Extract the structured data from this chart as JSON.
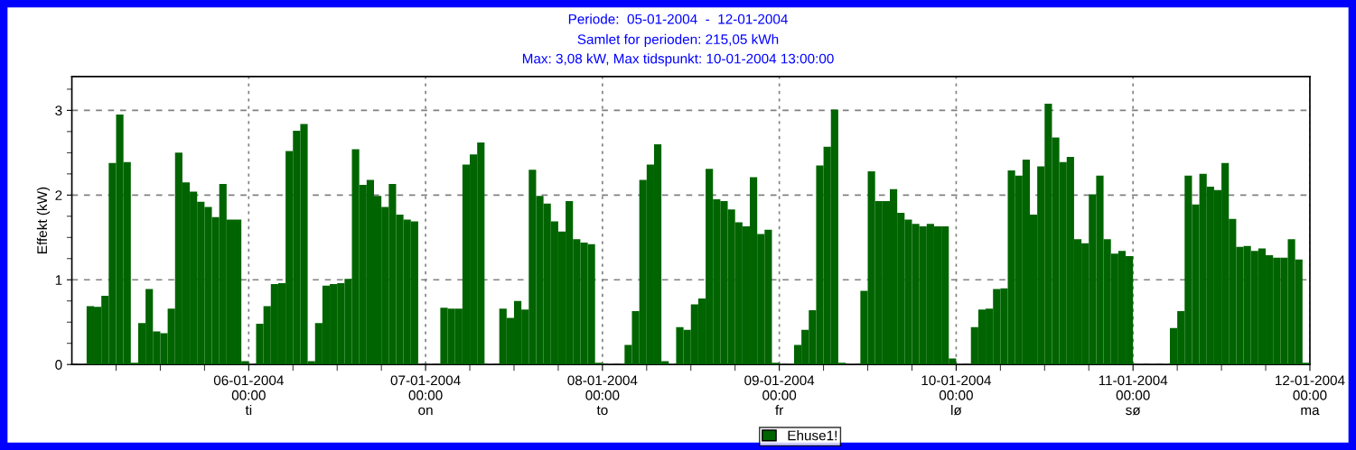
{
  "chart_data": {
    "type": "bar",
    "title": "Periode:  05-01-2004  -  12-01-2004",
    "subtitle": "Samlet for perioden: 215,05 kWh\nMax: 3,08 kW, Max tidspunkt: 10-01-2004 13:00:00",
    "ylabel": "Effekt (kW)",
    "x": [
      "2004-01-05T01:00",
      "2004-01-05T02:00",
      "2004-01-05T03:00",
      "2004-01-05T04:00",
      "2004-01-05T05:00",
      "2004-01-05T06:00",
      "2004-01-05T07:00",
      "2004-01-05T08:00",
      "2004-01-05T09:00",
      "2004-01-05T10:00",
      "2004-01-05T11:00",
      "2004-01-05T12:00",
      "2004-01-05T13:00",
      "2004-01-05T14:00",
      "2004-01-05T15:00",
      "2004-01-05T16:00",
      "2004-01-05T17:00",
      "2004-01-05T18:00",
      "2004-01-05T19:00",
      "2004-01-05T20:00",
      "2004-01-05T21:00",
      "2004-01-05T22:00",
      "2004-01-05T23:00",
      "2004-01-06T00:00",
      "2004-01-06T01:00",
      "2004-01-06T02:00",
      "2004-01-06T03:00",
      "2004-01-06T04:00",
      "2004-01-06T05:00",
      "2004-01-06T06:00",
      "2004-01-06T07:00",
      "2004-01-06T08:00",
      "2004-01-06T09:00",
      "2004-01-06T10:00",
      "2004-01-06T11:00",
      "2004-01-06T12:00",
      "2004-01-06T13:00",
      "2004-01-06T14:00",
      "2004-01-06T15:00",
      "2004-01-06T16:00",
      "2004-01-06T17:00",
      "2004-01-06T18:00",
      "2004-01-06T19:00",
      "2004-01-06T20:00",
      "2004-01-06T21:00",
      "2004-01-06T22:00",
      "2004-01-06T23:00",
      "2004-01-07T00:00",
      "2004-01-07T01:00",
      "2004-01-07T02:00",
      "2004-01-07T03:00",
      "2004-01-07T04:00",
      "2004-01-07T05:00",
      "2004-01-07T06:00",
      "2004-01-07T07:00",
      "2004-01-07T08:00",
      "2004-01-07T09:00",
      "2004-01-07T10:00",
      "2004-01-07T11:00",
      "2004-01-07T12:00",
      "2004-01-07T13:00",
      "2004-01-07T14:00",
      "2004-01-07T15:00",
      "2004-01-07T16:00",
      "2004-01-07T17:00",
      "2004-01-07T18:00",
      "2004-01-07T19:00",
      "2004-01-07T20:00",
      "2004-01-07T21:00",
      "2004-01-07T22:00",
      "2004-01-07T23:00",
      "2004-01-08T00:00",
      "2004-01-08T01:00",
      "2004-01-08T02:00",
      "2004-01-08T03:00",
      "2004-01-08T04:00",
      "2004-01-08T05:00",
      "2004-01-08T06:00",
      "2004-01-08T07:00",
      "2004-01-08T08:00",
      "2004-01-08T09:00",
      "2004-01-08T10:00",
      "2004-01-08T11:00",
      "2004-01-08T12:00",
      "2004-01-08T13:00",
      "2004-01-08T14:00",
      "2004-01-08T15:00",
      "2004-01-08T16:00",
      "2004-01-08T17:00",
      "2004-01-08T18:00",
      "2004-01-08T19:00",
      "2004-01-08T20:00",
      "2004-01-08T21:00",
      "2004-01-08T22:00",
      "2004-01-08T23:00",
      "2004-01-09T00:00",
      "2004-01-09T01:00",
      "2004-01-09T02:00",
      "2004-01-09T03:00",
      "2004-01-09T04:00",
      "2004-01-09T05:00",
      "2004-01-09T06:00",
      "2004-01-09T07:00",
      "2004-01-09T08:00",
      "2004-01-09T09:00",
      "2004-01-09T10:00",
      "2004-01-09T11:00",
      "2004-01-09T12:00",
      "2004-01-09T13:00",
      "2004-01-09T14:00",
      "2004-01-09T15:00",
      "2004-01-09T16:00",
      "2004-01-09T17:00",
      "2004-01-09T18:00",
      "2004-01-09T19:00",
      "2004-01-09T20:00",
      "2004-01-09T21:00",
      "2004-01-09T22:00",
      "2004-01-09T23:00",
      "2004-01-10T00:00",
      "2004-01-10T01:00",
      "2004-01-10T02:00",
      "2004-01-10T03:00",
      "2004-01-10T04:00",
      "2004-01-10T05:00",
      "2004-01-10T06:00",
      "2004-01-10T07:00",
      "2004-01-10T08:00",
      "2004-01-10T09:00",
      "2004-01-10T10:00",
      "2004-01-10T11:00",
      "2004-01-10T12:00",
      "2004-01-10T13:00",
      "2004-01-10T14:00",
      "2004-01-10T15:00",
      "2004-01-10T16:00",
      "2004-01-10T17:00",
      "2004-01-10T18:00",
      "2004-01-10T19:00",
      "2004-01-10T20:00",
      "2004-01-10T21:00",
      "2004-01-10T22:00",
      "2004-01-10T23:00",
      "2004-01-11T00:00",
      "2004-01-11T01:00",
      "2004-01-11T02:00",
      "2004-01-11T03:00",
      "2004-01-11T04:00",
      "2004-01-11T05:00",
      "2004-01-11T06:00",
      "2004-01-11T07:00",
      "2004-01-11T08:00",
      "2004-01-11T09:00",
      "2004-01-11T10:00",
      "2004-01-11T11:00",
      "2004-01-11T12:00",
      "2004-01-11T13:00",
      "2004-01-11T14:00",
      "2004-01-11T15:00",
      "2004-01-11T16:00",
      "2004-01-11T17:00",
      "2004-01-11T18:00",
      "2004-01-11T19:00",
      "2004-01-11T20:00",
      "2004-01-11T21:00",
      "2004-01-11T22:00",
      "2004-01-11T23:00",
      "2004-01-12T00:00"
    ],
    "series": [
      {
        "name": "Ehuse1!",
        "color": "#006400",
        "values": [
          0,
          0,
          0.69,
          0.68,
          0.81,
          2.38,
          2.95,
          2.39,
          0.02,
          0.49,
          0.89,
          0.39,
          0.37,
          0.66,
          2.5,
          2.15,
          2.04,
          1.92,
          1.86,
          1.74,
          2.13,
          1.71,
          1.71,
          0.04,
          0,
          0.48,
          0.69,
          0.95,
          0.96,
          2.52,
          2.76,
          2.84,
          0.04,
          0.49,
          0.93,
          0.95,
          0.96,
          1.01,
          2.54,
          2.12,
          2.18,
          1.99,
          1.86,
          2.13,
          1.77,
          1.71,
          1.69,
          0,
          0,
          0,
          0.67,
          0.66,
          0.66,
          2.36,
          2.48,
          2.62,
          0,
          0,
          0.66,
          0.55,
          0.75,
          0.65,
          2.3,
          1.99,
          1.9,
          1.69,
          1.57,
          1.93,
          1.48,
          1.44,
          1.42,
          0.02,
          0,
          0,
          0,
          0.23,
          0.63,
          2.18,
          2.36,
          2.6,
          0.04,
          0,
          0.44,
          0.41,
          0.71,
          0.78,
          2.31,
          1.95,
          1.93,
          1.83,
          1.68,
          1.63,
          2.21,
          1.54,
          1.59,
          0.02,
          0,
          0,
          0.23,
          0.41,
          0.64,
          2.35,
          2.57,
          3.01,
          0.02,
          0,
          0,
          0.87,
          2.28,
          1.93,
          1.93,
          2.07,
          1.79,
          1.71,
          1.66,
          1.63,
          1.66,
          1.63,
          1.63,
          0.07,
          0,
          0,
          0.44,
          0.65,
          0.66,
          0.89,
          0.9,
          2.29,
          2.23,
          2.42,
          1.77,
          2.34,
          3.08,
          2.68,
          2.39,
          2.45,
          1.48,
          1.43,
          2.01,
          2.23,
          1.48,
          1.31,
          1.34,
          1.28,
          0,
          0,
          0,
          0,
          0,
          0.43,
          0.63,
          2.23,
          1.89,
          2.25,
          2.1,
          2.06,
          2.38,
          1.72,
          1.39,
          1.4,
          1.34,
          1.37,
          1.29,
          1.26,
          1.26,
          1.48,
          1.24,
          0.02
        ]
      }
    ],
    "xlim": [
      "2004-01-05T00:00",
      "2004-01-12T00:00"
    ],
    "xticks": [
      {
        "value": "2004-01-05T06:00",
        "label": null
      },
      {
        "value": "2004-01-05T12:00",
        "label": null
      },
      {
        "value": "2004-01-05T18:00",
        "label": null
      },
      {
        "value": "2004-01-06T00:00",
        "label": "06-01-2004\n00:00\nti"
      },
      {
        "value": "2004-01-06T06:00",
        "label": null
      },
      {
        "value": "2004-01-06T12:00",
        "label": null
      },
      {
        "value": "2004-01-06T18:00",
        "label": null
      },
      {
        "value": "2004-01-07T00:00",
        "label": "07-01-2004\n00:00\non"
      },
      {
        "value": "2004-01-07T06:00",
        "label": null
      },
      {
        "value": "2004-01-07T12:00",
        "label": null
      },
      {
        "value": "2004-01-07T18:00",
        "label": null
      },
      {
        "value": "2004-01-08T00:00",
        "label": "08-01-2004\n00:00\nto"
      },
      {
        "value": "2004-01-08T06:00",
        "label": null
      },
      {
        "value": "2004-01-08T12:00",
        "label": null
      },
      {
        "value": "2004-01-08T18:00",
        "label": null
      },
      {
        "value": "2004-01-09T00:00",
        "label": "09-01-2004\n00:00\nfr"
      },
      {
        "value": "2004-01-09T06:00",
        "label": null
      },
      {
        "value": "2004-01-09T12:00",
        "label": null
      },
      {
        "value": "2004-01-09T18:00",
        "label": null
      },
      {
        "value": "2004-01-10T00:00",
        "label": "10-01-2004\n00:00\nlø"
      },
      {
        "value": "2004-01-10T06:00",
        "label": null
      },
      {
        "value": "2004-01-10T12:00",
        "label": null
      },
      {
        "value": "2004-01-10T18:00",
        "label": null
      },
      {
        "value": "2004-01-11T00:00",
        "label": "11-01-2004\n00:00\nsø"
      },
      {
        "value": "2004-01-11T06:00",
        "label": null
      },
      {
        "value": "2004-01-11T12:00",
        "label": null
      },
      {
        "value": "2004-01-11T18:00",
        "label": null
      },
      {
        "value": "2004-01-12T00:00",
        "label": "12-01-2004\n00:00\nma"
      }
    ],
    "ylim": [
      0,
      3.4
    ],
    "yticks": [
      0,
      {
        "value": 0.25,
        "label": null
      },
      {
        "value": 0.5,
        "label": null
      },
      {
        "value": 0.75,
        "label": null
      },
      1,
      {
        "value": 1.25,
        "label": null
      },
      {
        "value": 1.5,
        "label": null
      },
      {
        "value": 1.75,
        "label": null
      },
      2,
      {
        "value": 2.25,
        "label": null
      },
      {
        "value": 2.5,
        "label": null
      },
      {
        "value": 2.75,
        "label": null
      },
      3,
      {
        "value": 3.25,
        "label": null
      }
    ],
    "grid": true,
    "legend": "bottom"
  }
}
